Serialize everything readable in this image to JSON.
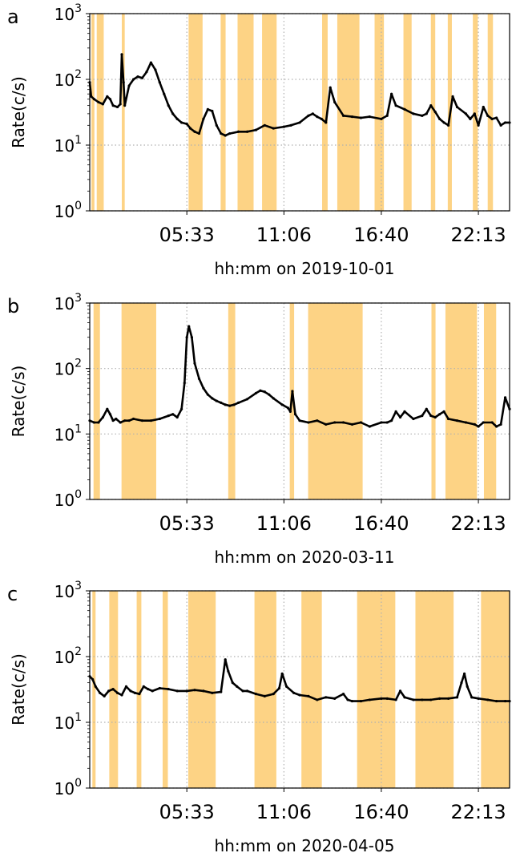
{
  "chart_data": [
    {
      "type": "line",
      "panel_letter": "a",
      "xlabel": "hh:mm on 2019-10-01",
      "ylabel": "Rate(c/s)",
      "yscale": "log",
      "ylim": [
        1,
        1000
      ],
      "xlim": [
        "00:00",
        "24:00"
      ],
      "x_ticks": [
        "05:33",
        "11:06",
        "16:40",
        "22:13"
      ],
      "y_ticks": [
        {
          "base": "10",
          "exp": "0"
        },
        {
          "base": "10",
          "exp": "1"
        },
        {
          "base": "10",
          "exp": "2"
        },
        {
          "base": "10",
          "exp": "3"
        }
      ],
      "grid": true,
      "highlight_color": "#fdd385",
      "line_color": "#000000",
      "shaded_intervals": [
        [
          "00:06",
          "00:16"
        ],
        [
          "00:24",
          "00:48"
        ],
        [
          "01:50",
          "02:00"
        ],
        [
          "05:39",
          "06:27"
        ],
        [
          "07:29",
          "07:46"
        ],
        [
          "08:27",
          "09:22"
        ],
        [
          "09:51",
          "10:41"
        ],
        [
          "13:17",
          "13:36"
        ],
        [
          "14:09",
          "15:25"
        ],
        [
          "16:17",
          "16:49"
        ],
        [
          "17:56",
          "18:24"
        ],
        [
          "19:30",
          "19:45"
        ],
        [
          "20:28",
          "20:42"
        ],
        [
          "21:54",
          "22:11"
        ],
        [
          "22:45",
          "23:03"
        ]
      ],
      "series": [
        {
          "x": [
            "00:00",
            "00:05",
            "00:15",
            "00:30",
            "00:45",
            "01:00",
            "01:10",
            "01:20",
            "01:35",
            "01:45",
            "01:50",
            "01:56",
            "02:00",
            "02:15",
            "02:30",
            "02:45",
            "03:00",
            "03:15",
            "03:30",
            "03:45",
            "04:00",
            "04:15",
            "04:30",
            "04:45",
            "05:00",
            "05:15",
            "05:33",
            "05:45",
            "06:00",
            "06:15",
            "06:30",
            "06:45",
            "07:00",
            "07:15",
            "07:30",
            "07:45",
            "08:00",
            "08:30",
            "09:00",
            "09:30",
            "10:00",
            "10:30",
            "11:06",
            "11:30",
            "12:00",
            "12:30",
            "12:45",
            "13:00",
            "13:15",
            "13:30",
            "13:45",
            "14:00",
            "14:30",
            "15:00",
            "15:30",
            "16:00",
            "16:40",
            "17:00",
            "17:15",
            "17:30",
            "18:00",
            "18:30",
            "19:00",
            "19:15",
            "19:30",
            "19:45",
            "20:00",
            "20:15",
            "20:30",
            "20:45",
            "21:00",
            "21:30",
            "21:45",
            "22:00",
            "22:13",
            "22:30",
            "22:45",
            "23:00",
            "23:15",
            "23:30",
            "23:45",
            "24:00"
          ],
          "values": [
            90,
            55,
            50,
            45,
            42,
            55,
            50,
            40,
            38,
            42,
            240,
            90,
            40,
            80,
            100,
            110,
            105,
            130,
            180,
            140,
            90,
            60,
            40,
            30,
            25,
            22,
            21,
            18,
            16,
            15,
            25,
            35,
            33,
            20,
            15,
            14,
            15,
            16,
            16,
            17,
            20,
            18,
            19,
            20,
            22,
            28,
            30,
            27,
            25,
            22,
            75,
            45,
            28,
            27,
            26,
            27,
            25,
            28,
            60,
            40,
            35,
            30,
            28,
            30,
            40,
            32,
            25,
            22,
            20,
            55,
            38,
            30,
            25,
            30,
            20,
            38,
            28,
            25,
            26,
            20,
            22,
            22
          ]
        }
      ]
    },
    {
      "type": "line",
      "panel_letter": "b",
      "xlabel": "hh:mm on 2020-03-11",
      "ylabel": "Rate(c/s)",
      "yscale": "log",
      "ylim": [
        1,
        1000
      ],
      "xlim": [
        "00:00",
        "24:00"
      ],
      "x_ticks": [
        "05:33",
        "11:06",
        "16:40",
        "22:13"
      ],
      "y_ticks": [
        {
          "base": "10",
          "exp": "0"
        },
        {
          "base": "10",
          "exp": "1"
        },
        {
          "base": "10",
          "exp": "2"
        },
        {
          "base": "10",
          "exp": "3"
        }
      ],
      "grid": true,
      "highlight_color": "#fdd385",
      "line_color": "#000000",
      "shaded_intervals": [
        [
          "00:13",
          "00:35"
        ],
        [
          "01:49",
          "03:48"
        ],
        [
          "07:55",
          "08:19"
        ],
        [
          "11:26",
          "11:41"
        ],
        [
          "12:29",
          "15:36"
        ],
        [
          "19:32",
          "19:46"
        ],
        [
          "20:20",
          "22:08"
        ],
        [
          "22:32",
          "23:14"
        ]
      ],
      "series": [
        {
          "x": [
            "00:00",
            "00:15",
            "00:30",
            "00:45",
            "01:00",
            "01:10",
            "01:20",
            "01:30",
            "01:45",
            "02:00",
            "02:15",
            "02:30",
            "03:00",
            "03:30",
            "04:00",
            "04:30",
            "04:45",
            "05:00",
            "05:15",
            "05:25",
            "05:33",
            "05:40",
            "05:50",
            "06:00",
            "06:15",
            "06:30",
            "06:45",
            "07:00",
            "07:15",
            "07:30",
            "07:45",
            "08:00",
            "08:15",
            "08:30",
            "09:00",
            "09:30",
            "09:45",
            "10:00",
            "10:15",
            "10:30",
            "11:00",
            "11:20",
            "11:28",
            "11:35",
            "11:45",
            "12:00",
            "12:30",
            "13:00",
            "13:30",
            "14:00",
            "14:30",
            "15:00",
            "15:30",
            "16:00",
            "16:40",
            "17:00",
            "17:15",
            "17:30",
            "17:45",
            "18:00",
            "18:30",
            "19:00",
            "19:15",
            "19:30",
            "19:45",
            "20:00",
            "20:15",
            "20:30",
            "21:00",
            "21:30",
            "22:00",
            "22:13",
            "22:30",
            "23:00",
            "23:15",
            "23:30",
            "23:45",
            "24:00"
          ],
          "values": [
            16,
            15,
            15,
            18,
            24,
            20,
            16,
            17,
            15,
            16,
            16,
            17,
            16,
            16,
            17,
            19,
            20,
            18,
            24,
            60,
            300,
            440,
            300,
            120,
            70,
            50,
            40,
            35,
            32,
            30,
            28,
            27,
            28,
            30,
            34,
            42,
            46,
            44,
            40,
            35,
            28,
            25,
            22,
            45,
            20,
            16,
            15,
            16,
            14,
            15,
            15,
            14,
            15,
            13,
            15,
            15,
            16,
            22,
            18,
            22,
            17,
            19,
            24,
            19,
            18,
            20,
            22,
            17,
            16,
            15,
            14,
            13,
            15,
            15,
            13,
            14,
            36,
            24
          ]
        }
      ]
    },
    {
      "type": "line",
      "panel_letter": "c",
      "xlabel": "hh:mm on 2020-04-05",
      "ylabel": "Rate(c/s)",
      "yscale": "log",
      "ylim": [
        1,
        1000
      ],
      "xlim": [
        "00:00",
        "24:00"
      ],
      "x_ticks": [
        "05:33",
        "11:06",
        "16:40",
        "22:13"
      ],
      "y_ticks": [
        {
          "base": "10",
          "exp": "0"
        },
        {
          "base": "10",
          "exp": "1"
        },
        {
          "base": "10",
          "exp": "2"
        },
        {
          "base": "10",
          "exp": "3"
        }
      ],
      "grid": true,
      "highlight_color": "#fdd385",
      "line_color": "#000000",
      "shaded_intervals": [
        [
          "00:09",
          "00:20"
        ],
        [
          "01:07",
          "01:37"
        ],
        [
          "02:41",
          "02:57"
        ],
        [
          "04:10",
          "04:28"
        ],
        [
          "05:38",
          "07:12"
        ],
        [
          "09:25",
          "10:40"
        ],
        [
          "12:06",
          "13:16"
        ],
        [
          "15:17",
          "17:28"
        ],
        [
          "18:37",
          "20:48"
        ],
        [
          "22:22",
          "24:00"
        ]
      ],
      "series": [
        {
          "x": [
            "00:00",
            "00:10",
            "00:20",
            "00:35",
            "00:50",
            "01:05",
            "01:20",
            "01:35",
            "01:50",
            "02:05",
            "02:20",
            "02:35",
            "02:50",
            "03:05",
            "03:20",
            "03:35",
            "04:00",
            "04:30",
            "05:00",
            "05:33",
            "06:00",
            "06:30",
            "07:00",
            "07:30",
            "07:45",
            "07:55",
            "08:10",
            "08:25",
            "08:45",
            "09:00",
            "09:30",
            "10:00",
            "10:30",
            "10:50",
            "11:00",
            "11:15",
            "11:40",
            "12:00",
            "12:30",
            "13:00",
            "13:30",
            "14:00",
            "14:30",
            "14:45",
            "15:00",
            "15:30",
            "16:00",
            "16:40",
            "17:00",
            "17:30",
            "17:45",
            "18:00",
            "18:30",
            "19:00",
            "19:30",
            "20:00",
            "20:30",
            "21:00",
            "21:15",
            "21:25",
            "21:35",
            "21:50",
            "22:13",
            "22:45",
            "23:15",
            "23:45",
            "24:00"
          ],
          "values": [
            50,
            45,
            35,
            28,
            25,
            30,
            32,
            28,
            26,
            35,
            30,
            28,
            27,
            35,
            32,
            30,
            33,
            32,
            30,
            30,
            31,
            30,
            28,
            29,
            90,
            60,
            40,
            35,
            30,
            30,
            27,
            25,
            27,
            33,
            55,
            35,
            28,
            26,
            25,
            22,
            24,
            23,
            27,
            22,
            21,
            21,
            22,
            23,
            23,
            22,
            30,
            24,
            22,
            22,
            22,
            23,
            23,
            24,
            40,
            55,
            35,
            24,
            23,
            22,
            21,
            21,
            21
          ]
        }
      ]
    }
  ]
}
